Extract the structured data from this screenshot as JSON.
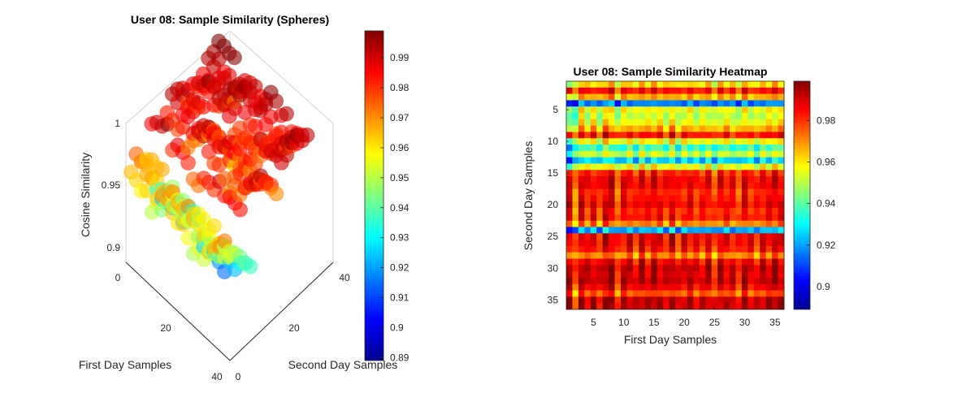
{
  "sphere_chart": {
    "title": "User 08: Sample Similarity (Spheres)",
    "xlabel": "First Day Samples",
    "ylabel": "Second Day Samples",
    "zlabel": "Cosine Similarity",
    "x_ticks": [
      "0",
      "20",
      "40"
    ],
    "y_ticks": [
      "0",
      "20",
      "40"
    ],
    "z_ticks": [
      "0.9",
      "0.95",
      "1"
    ],
    "colorbar_ticks": [
      "0.89",
      "0.9",
      "0.91",
      "0.92",
      "0.93",
      "0.94",
      "0.95",
      "0.96",
      "0.97",
      "0.98",
      "0.99"
    ]
  },
  "heatmap_chart": {
    "title": "User 08: Sample Similarity Heatmap",
    "xlabel": "First Day Samples",
    "ylabel": "Second Day Samples",
    "x_ticks": [
      "5",
      "10",
      "15",
      "20",
      "25",
      "30",
      "35"
    ],
    "y_ticks": [
      "5",
      "10",
      "15",
      "20",
      "25",
      "30",
      "35"
    ],
    "colorbar_ticks": [
      "0.9",
      "0.92",
      "0.94",
      "0.96",
      "0.98"
    ]
  },
  "chart_data": [
    {
      "type": "scatter",
      "title": "User 08: Sample Similarity (Spheres)",
      "xlabel": "First Day Samples",
      "ylabel": "Second Day Samples",
      "zlabel": "Cosine Similarity",
      "xlim": [
        0,
        40
      ],
      "ylim": [
        0,
        40
      ],
      "zlim": [
        0.9,
        1
      ],
      "clim": [
        0.889,
        0.999
      ],
      "colormap": "jet",
      "marker": "sphere",
      "grid": false
    },
    {
      "type": "heatmap",
      "title": "User 08: Sample Similarity Heatmap",
      "xlabel": "First Day Samples",
      "ylabel": "Second Day Samples",
      "rows": 36,
      "cols": 36,
      "clim": [
        0.889,
        0.999
      ],
      "colormap": "jet",
      "row_levels": [
        0.96,
        0.982,
        0.965,
        0.915,
        0.955,
        0.95,
        0.955,
        0.965,
        0.982,
        0.955,
        0.935,
        0.95,
        0.925,
        0.955,
        0.98,
        0.985,
        0.985,
        0.98,
        0.982,
        0.985,
        0.98,
        0.982,
        0.97,
        0.92,
        0.985,
        0.985,
        0.982,
        0.97,
        0.985,
        0.99,
        0.988,
        0.99,
        0.985,
        0.975,
        0.99,
        0.99
      ],
      "col_offsets": [
        0.005,
        -0.01,
        0.006,
        0.0,
        0.004,
        -0.004,
        0.008,
        0.006,
        -0.006,
        0.002,
        0.004,
        -0.003,
        0.006,
        0.0,
        0.005,
        0.003,
        -0.002,
        0.007,
        -0.004,
        0.003,
        0.002,
        0.0,
        -0.001,
        0.004,
        -0.006,
        0.003,
        0.002,
        0.0,
        -0.004,
        0.004,
        0.001,
        -0.003,
        0.004,
        0.002,
        0.006,
        0.004
      ]
    }
  ]
}
